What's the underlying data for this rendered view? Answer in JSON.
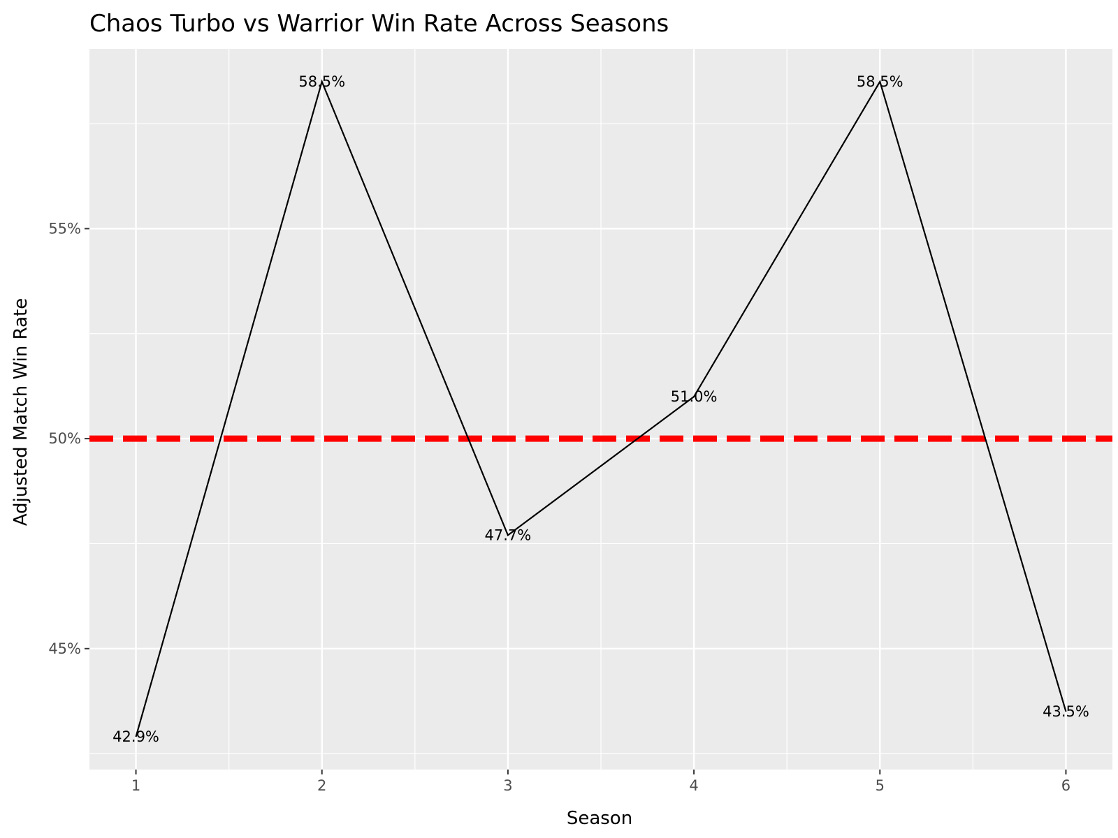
{
  "chart_data": {
    "type": "line",
    "title": "Chaos Turbo vs Warrior Win Rate Across Seasons",
    "xlabel": "Season",
    "ylabel": "Adjusted Match Win Rate",
    "x": [
      1,
      2,
      3,
      4,
      5,
      6
    ],
    "x_tick_labels": [
      "1",
      "2",
      "3",
      "4",
      "5",
      "6"
    ],
    "series": [
      {
        "values": [
          0.429,
          0.585,
          0.477,
          0.51,
          0.585,
          0.435
        ]
      }
    ],
    "data_labels": [
      "42.9%",
      "58.5%",
      "47.7%",
      "51.0%",
      "58.5%",
      "43.5%"
    ],
    "y_ticks": [
      0.45,
      0.5,
      0.55
    ],
    "y_tick_labels": [
      "45%",
      "50%",
      "55%"
    ],
    "xlim": [
      0.75,
      6.25
    ],
    "ylim": [
      0.4212,
      0.5928
    ],
    "reference_line": {
      "y": 0.5,
      "style": "dashed",
      "color": "#ff0000"
    },
    "grid": true,
    "colors": {
      "panel": "#ebebeb",
      "grid": "#ffffff",
      "line": "#000000",
      "reference": "#ff0000"
    }
  }
}
